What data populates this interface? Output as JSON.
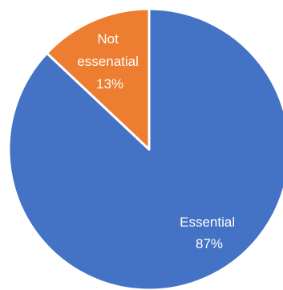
{
  "chart_data": {
    "type": "pie",
    "title": "",
    "slices": [
      {
        "label": "Essential",
        "value": 87,
        "percent_label": "87%",
        "color": "#4472C4"
      },
      {
        "label": "Not essenatial",
        "value": 13,
        "percent_label": "13%",
        "color": "#ED7D31"
      }
    ],
    "start_angle": "top",
    "direction": "clockwise",
    "legend": "none",
    "label_color": "#FFFFFF"
  }
}
